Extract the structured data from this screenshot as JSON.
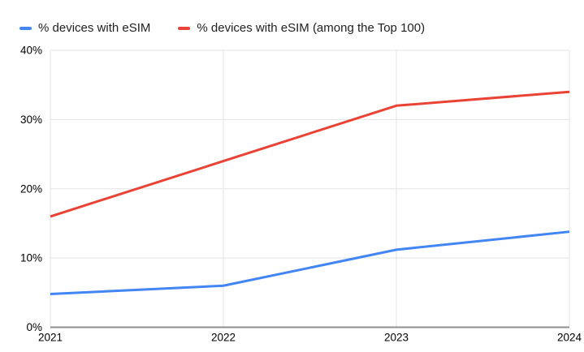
{
  "chart_data": {
    "type": "line",
    "x": [
      2021,
      2022,
      2023,
      2024
    ],
    "x_tick_labels": [
      "2021",
      "2022",
      "2023",
      "2024"
    ],
    "series": [
      {
        "name": "% devices with eSIM",
        "color": "#4285F4",
        "values": [
          4.8,
          6,
          11.2,
          13.8
        ]
      },
      {
        "name": "% devices with eSIM (among the Top 100)",
        "color": "#EA4335",
        "values": [
          16,
          24,
          32,
          34
        ]
      }
    ],
    "title": "",
    "xlabel": "",
    "ylabel": "",
    "ylim": [
      0,
      40
    ],
    "yticks": [
      {
        "value": 0,
        "label": "0%"
      },
      {
        "value": 10,
        "label": "10%"
      },
      {
        "value": 20,
        "label": "20%"
      },
      {
        "value": 30,
        "label": "30%"
      },
      {
        "value": 40,
        "label": "40%"
      }
    ],
    "grid": true,
    "legend_position": "top-left"
  },
  "colors": {
    "gridline": "#e3e3e3",
    "axis_line": "#8f8f8f",
    "tick_text": "#000000",
    "legend_text": "#212121",
    "background": "#ffffff"
  }
}
